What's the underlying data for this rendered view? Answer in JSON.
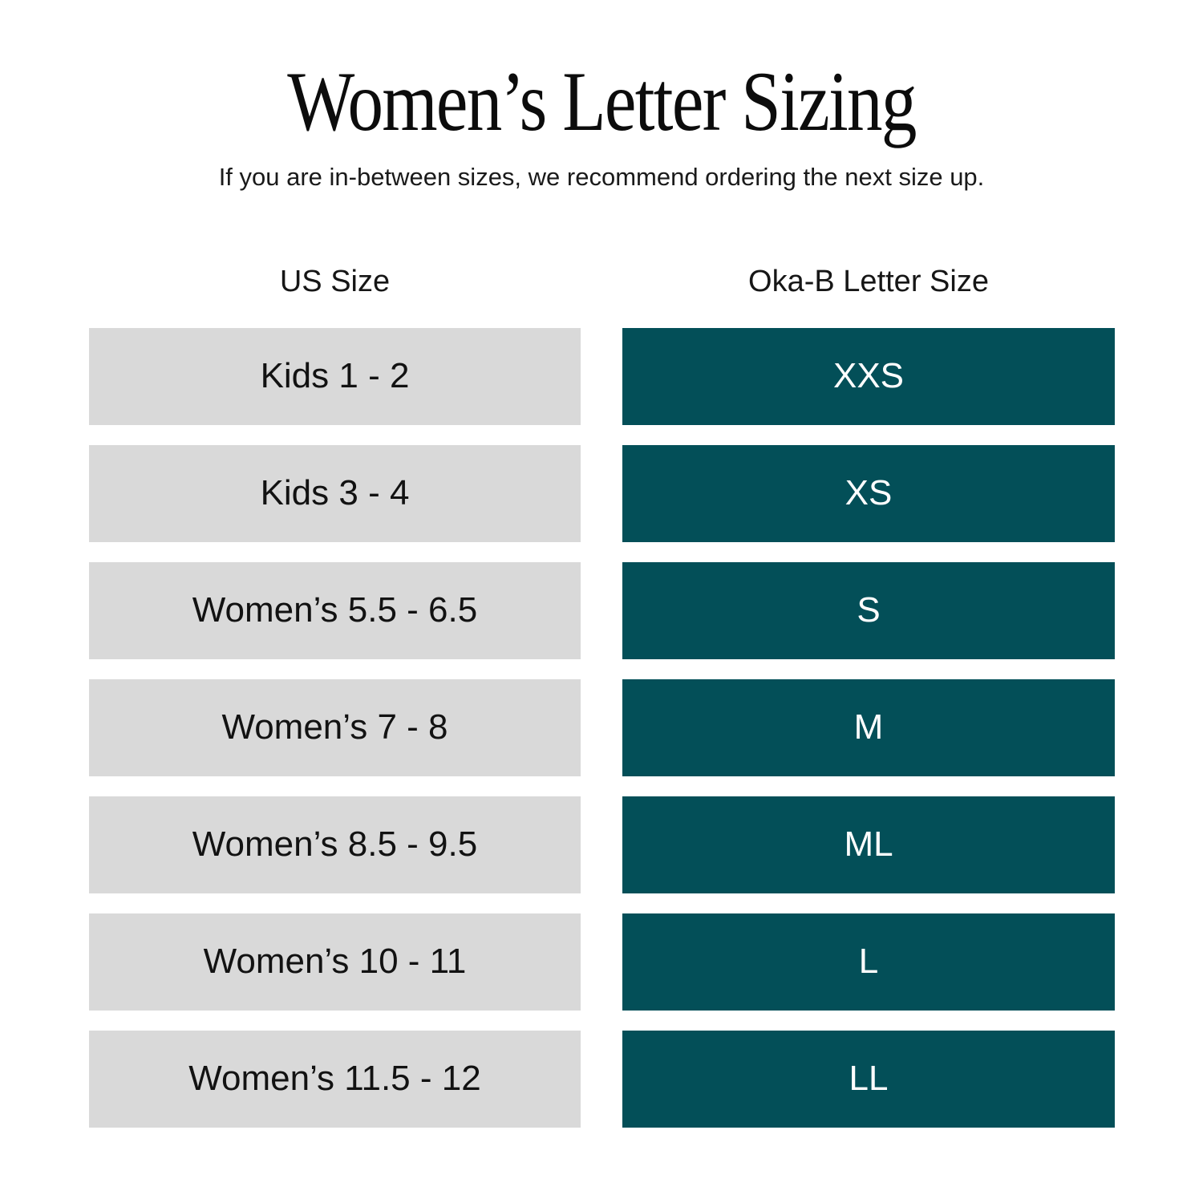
{
  "title": "Women’s Letter Sizing",
  "subtitle": "If you are in-between sizes, we recommend ordering the next size up.",
  "chart_data": {
    "type": "table",
    "title": "Women’s Letter Sizing",
    "subtitle": "If you are in-between sizes, we recommend ordering the next size up.",
    "columns": [
      "US Size",
      "Oka-B Letter Size"
    ],
    "rows": [
      {
        "us_size": "Kids 1 - 2",
        "letter_size": "XXS"
      },
      {
        "us_size": "Kids 3 - 4",
        "letter_size": "XS"
      },
      {
        "us_size": "Women’s 5.5 - 6.5",
        "letter_size": "S"
      },
      {
        "us_size": "Women’s 7 - 8",
        "letter_size": "M"
      },
      {
        "us_size": "Women’s 8.5 - 9.5",
        "letter_size": "ML"
      },
      {
        "us_size": "Women’s 10 - 11",
        "letter_size": "L"
      },
      {
        "us_size": "Women’s 11.5 - 12",
        "letter_size": "LL"
      }
    ]
  },
  "colors": {
    "teal": "#034f58",
    "gray": "#d9d9d9",
    "text_dark": "#121212",
    "text_light": "#ffffff"
  }
}
